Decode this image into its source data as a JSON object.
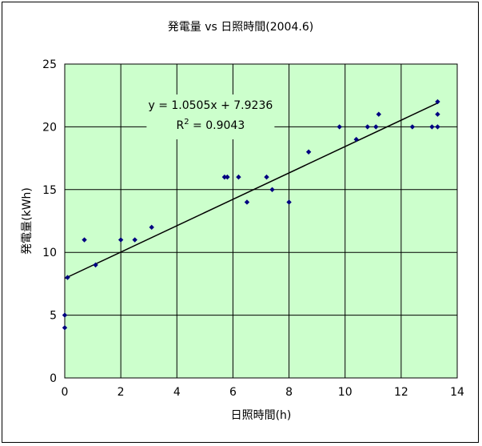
{
  "chart_data": {
    "type": "scatter",
    "title": "発電量 vs 日照時間(2004.6)",
    "xlabel": "日照時間(h)",
    "ylabel": "発電量(kWh)",
    "xlim": [
      0,
      14
    ],
    "ylim": [
      0,
      25
    ],
    "xticks": [
      0,
      2,
      4,
      6,
      8,
      10,
      12,
      14
    ],
    "yticks": [
      0,
      5,
      10,
      15,
      20,
      25
    ],
    "grid": true,
    "legend": "none",
    "colors": {
      "plot_bg": "#ccffcc",
      "marker": "#000080",
      "trend": "#000000"
    },
    "points": [
      {
        "x": 0.0,
        "y": 4
      },
      {
        "x": 0.0,
        "y": 5
      },
      {
        "x": 0.1,
        "y": 8
      },
      {
        "x": 0.7,
        "y": 11
      },
      {
        "x": 1.1,
        "y": 9
      },
      {
        "x": 2.0,
        "y": 11
      },
      {
        "x": 2.5,
        "y": 11
      },
      {
        "x": 3.1,
        "y": 12
      },
      {
        "x": 5.7,
        "y": 16
      },
      {
        "x": 5.8,
        "y": 16
      },
      {
        "x": 6.2,
        "y": 16
      },
      {
        "x": 6.5,
        "y": 14
      },
      {
        "x": 7.2,
        "y": 16
      },
      {
        "x": 7.4,
        "y": 15
      },
      {
        "x": 8.0,
        "y": 14
      },
      {
        "x": 8.7,
        "y": 18
      },
      {
        "x": 9.8,
        "y": 20
      },
      {
        "x": 10.4,
        "y": 19
      },
      {
        "x": 10.8,
        "y": 20
      },
      {
        "x": 11.1,
        "y": 20
      },
      {
        "x": 11.2,
        "y": 21
      },
      {
        "x": 12.4,
        "y": 20
      },
      {
        "x": 13.1,
        "y": 20
      },
      {
        "x": 13.3,
        "y": 22
      },
      {
        "x": 13.3,
        "y": 21
      },
      {
        "x": 13.3,
        "y": 20
      }
    ],
    "trendline": {
      "slope": 1.0505,
      "intercept": 7.9236,
      "x_range": [
        0,
        13.3
      ],
      "equation": "y = 1.0505x + 7.9236",
      "r2_base": "R",
      "r2_sup": "2",
      "r2_value": " = 0.9043"
    }
  }
}
